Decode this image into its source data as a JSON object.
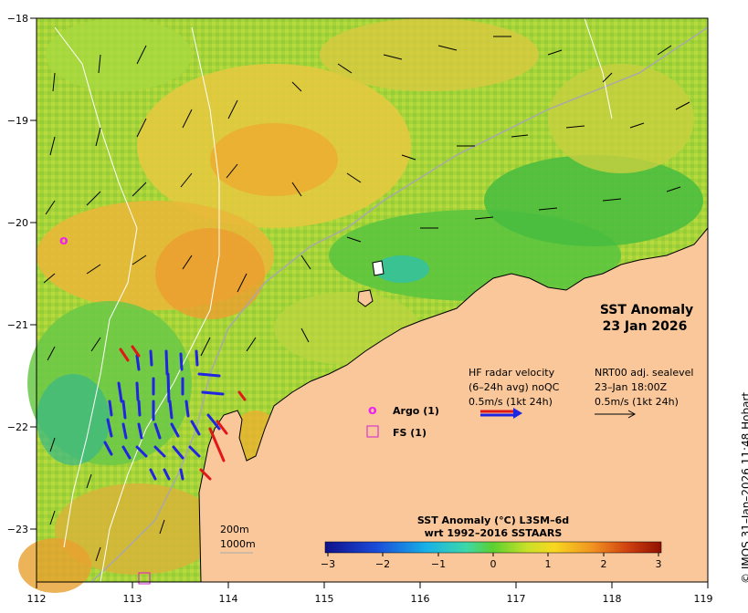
{
  "map": {
    "title_line1": "SST Anomaly",
    "title_line2": "23 Jan 2026",
    "lon_ticks": [
      "112",
      "113",
      "114",
      "115",
      "116",
      "117",
      "118",
      "119"
    ],
    "lat_ticks": [
      "−18",
      "−19",
      "−20",
      "−21",
      "−22",
      "−23"
    ],
    "colors": {
      "land": "#f9c79a",
      "ocean_base": "#b3d73a"
    }
  },
  "legend": {
    "hf_line1": "HF radar velocity",
    "hf_line2": "(6–24h avg) noQC",
    "hf_line3": "0.5m/s (1kt 24h)",
    "nrt_line1": "NRT00 adj. sealevel",
    "nrt_line2": "23–Jan 18:00Z",
    "nrt_line3": "0.5m/s (1kt 24h)",
    "argo_symbol": "o",
    "argo_label": "Argo (1)",
    "fs_label": "FS (1)",
    "depth_200": "200m",
    "depth_1000": "1000m"
  },
  "colorbar": {
    "title_line1": "SST Anomaly (°C) L3SM–6d",
    "title_line2": "wrt 1992–2016 SSTAARS",
    "ticks": [
      "−3",
      "−2",
      "−1",
      "0",
      "1",
      "2",
      "3"
    ]
  },
  "credit": "© IMOS 31–Jan–2026 11:48 Hobart"
}
